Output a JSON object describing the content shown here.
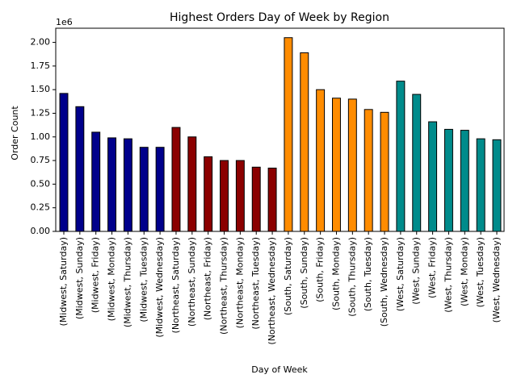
{
  "chart_data": {
    "type": "bar",
    "title": "Highest Orders Day of Week by Region",
    "xlabel": "Day of Week",
    "ylabel": "Order Count",
    "offset_label": "1e6",
    "ylim": [
      0,
      2.15
    ],
    "yticks": [
      "0.00",
      "0.25",
      "0.50",
      "0.75",
      "1.00",
      "1.25",
      "1.50",
      "1.75",
      "2.00"
    ],
    "ytick_values": [
      0,
      0.25,
      0.5,
      0.75,
      1.0,
      1.25,
      1.5,
      1.75,
      2.0
    ],
    "grid": false,
    "categories": [
      "(Midwest, Saturday)",
      "(Midwest, Sunday)",
      "(Midwest, Friday)",
      "(Midwest, Monday)",
      "(Midwest, Thursday)",
      "(Midwest, Tuesday)",
      "(Midwest, Wednesday)",
      "(Northeast, Saturday)",
      "(Northeast, Sunday)",
      "(Northeast, Friday)",
      "(Northeast, Thursday)",
      "(Northeast, Monday)",
      "(Northeast, Tuesday)",
      "(Northeast, Wednesday)",
      "(South, Saturday)",
      "(South, Sunday)",
      "(South, Friday)",
      "(South, Monday)",
      "(South, Thursday)",
      "(South, Tuesday)",
      "(South, Wednesday)",
      "(West, Saturday)",
      "(West, Sunday)",
      "(West, Friday)",
      "(West, Thursday)",
      "(West, Monday)",
      "(West, Tuesday)",
      "(West, Wednesday)"
    ],
    "values": [
      1.46,
      1.32,
      1.05,
      0.99,
      0.98,
      0.89,
      0.89,
      1.1,
      1.0,
      0.79,
      0.75,
      0.75,
      0.68,
      0.67,
      2.05,
      1.89,
      1.5,
      1.41,
      1.4,
      1.29,
      1.26,
      1.59,
      1.45,
      1.16,
      1.08,
      1.07,
      0.98,
      0.97
    ],
    "colors": [
      "#00008b",
      "#00008b",
      "#00008b",
      "#00008b",
      "#00008b",
      "#00008b",
      "#00008b",
      "#8b0000",
      "#8b0000",
      "#8b0000",
      "#8b0000",
      "#8b0000",
      "#8b0000",
      "#8b0000",
      "#ff8c00",
      "#ff8c00",
      "#ff8c00",
      "#ff8c00",
      "#ff8c00",
      "#ff8c00",
      "#ff8c00",
      "#008b8b",
      "#008b8b",
      "#008b8b",
      "#008b8b",
      "#008b8b",
      "#008b8b",
      "#008b8b"
    ]
  }
}
